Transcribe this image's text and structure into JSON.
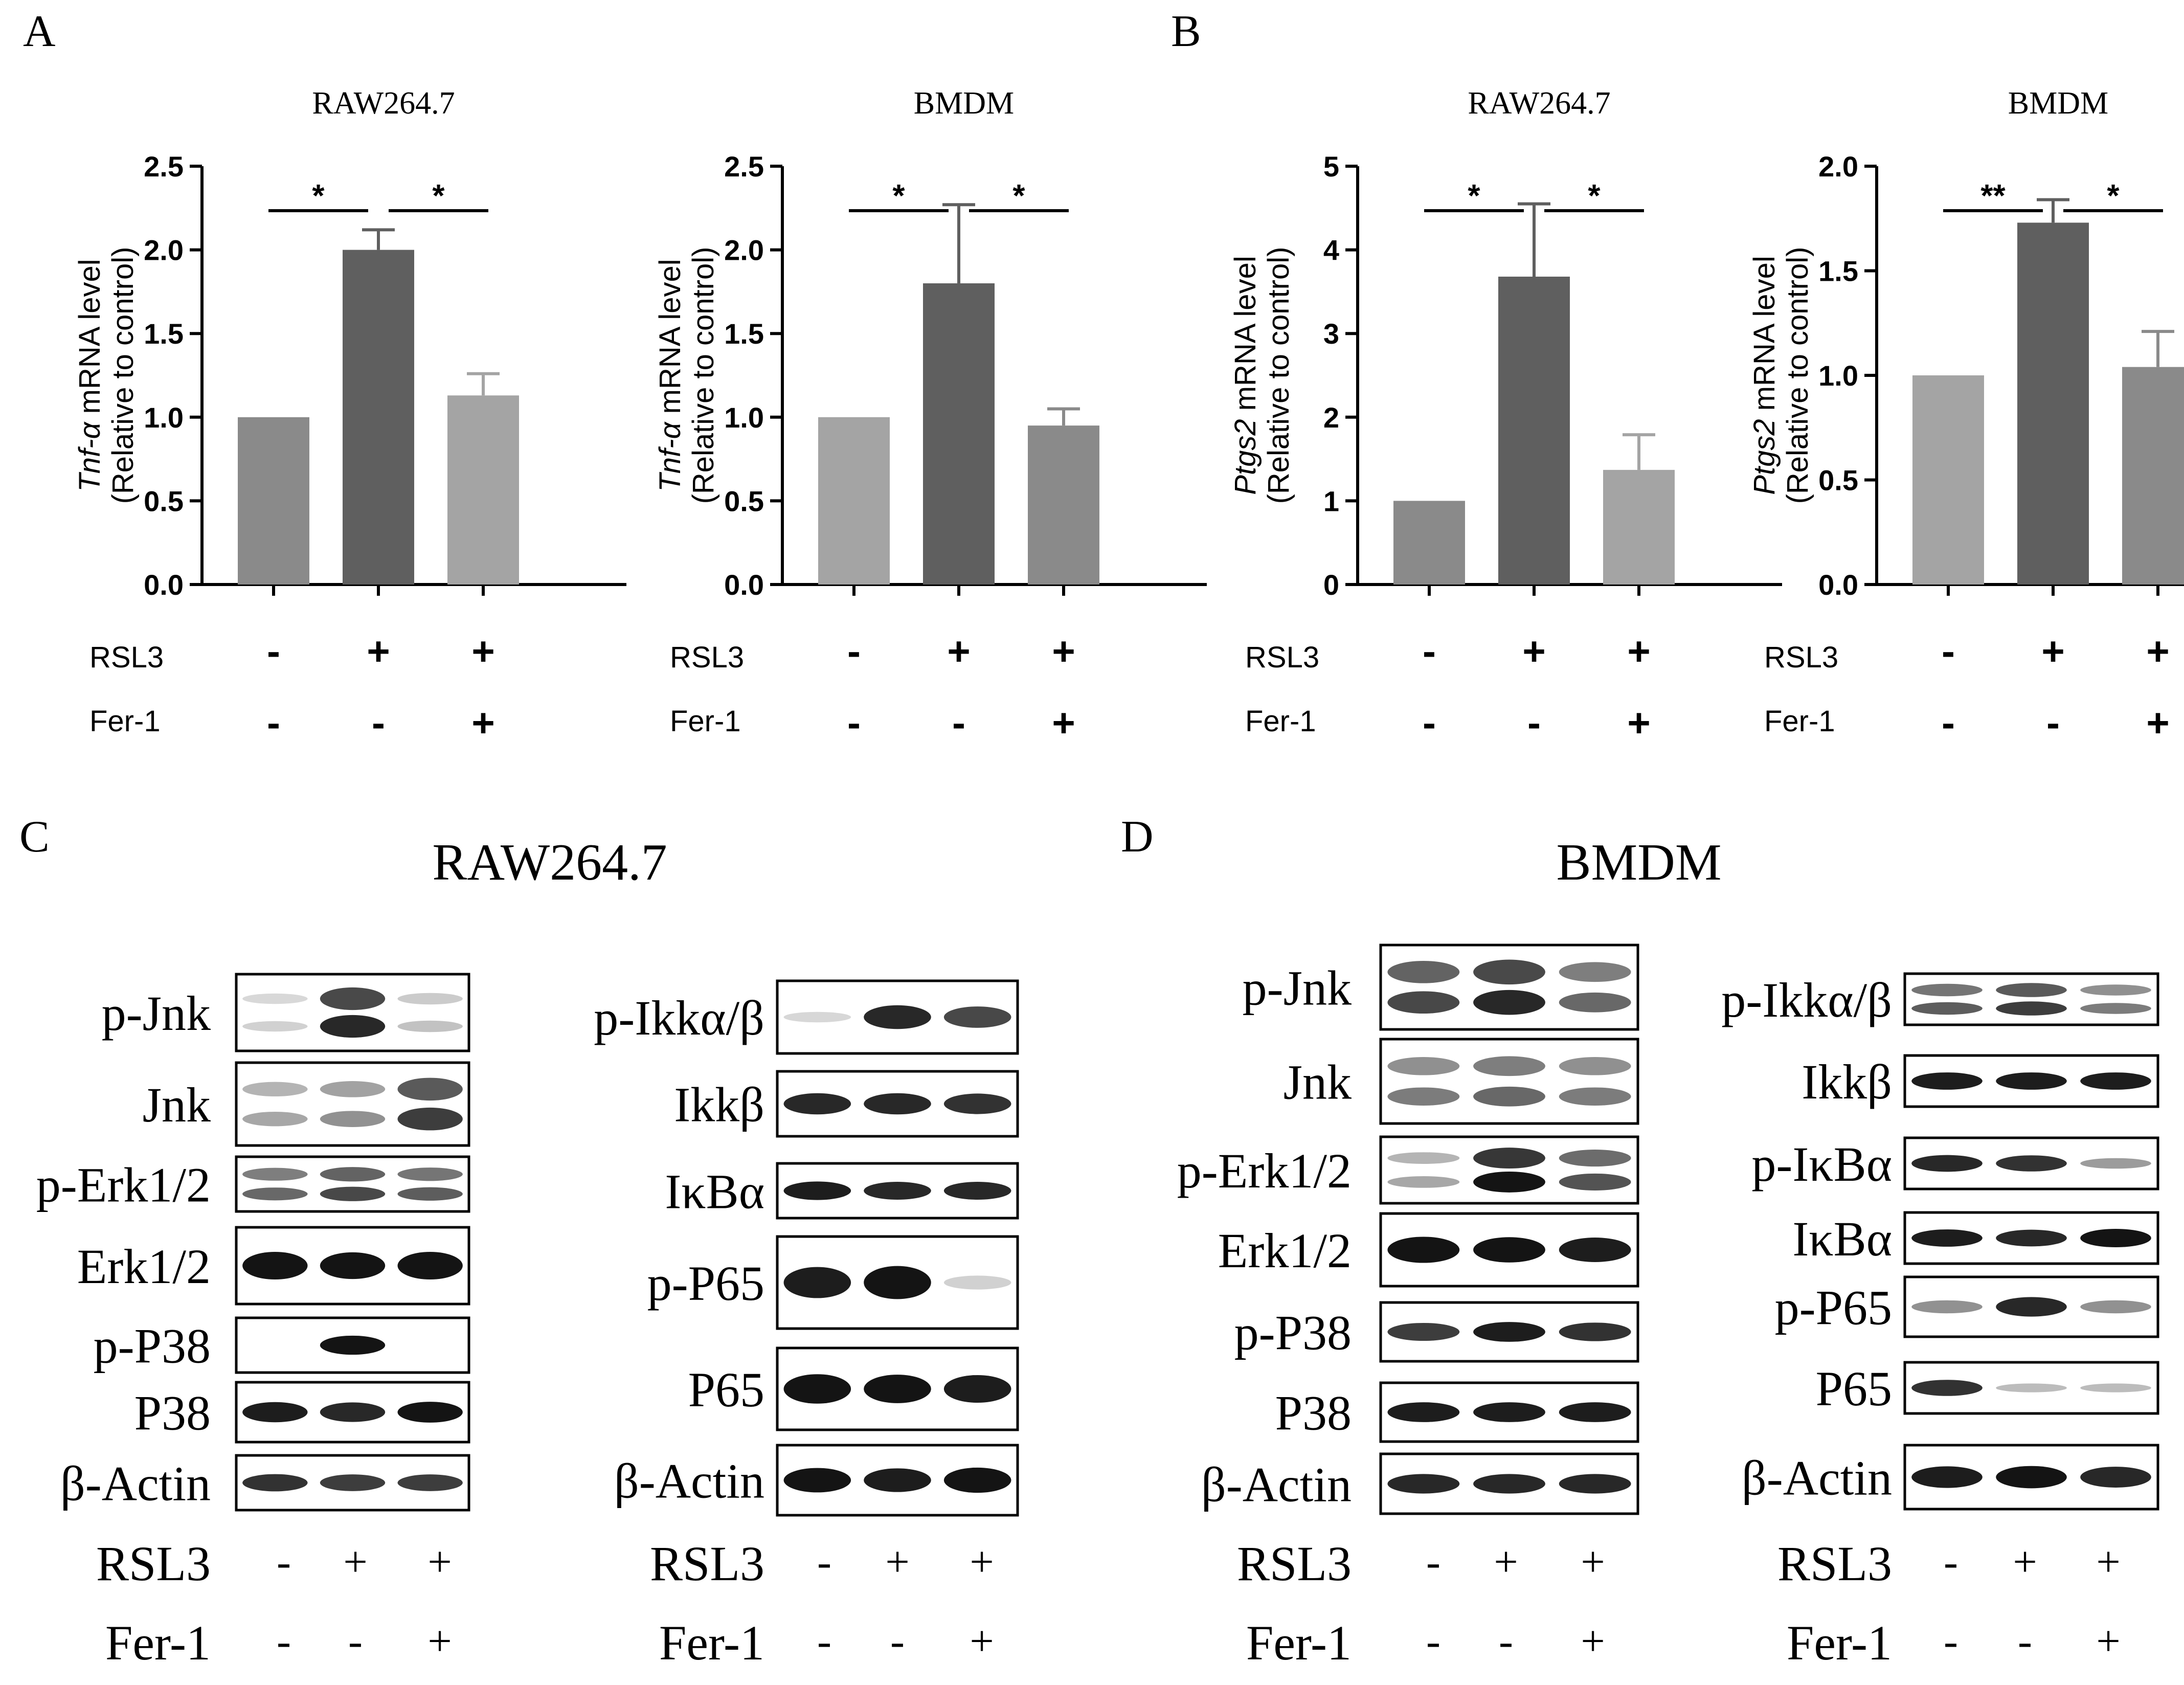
{
  "panel_letters": [
    "A",
    "B",
    "C",
    "D"
  ],
  "conditions": {
    "row_labels": [
      "RSL3",
      "Fer-1"
    ],
    "rsl3": [
      "-",
      "+",
      "+"
    ],
    "fer1": [
      "-",
      "-",
      "+"
    ]
  },
  "colors": {
    "bar_shades": [
      "#7f7f7f",
      "#5f5f5f",
      "#a4a4a4",
      "#9b9b9b",
      "#8a8a8a"
    ],
    "band": "#141414"
  },
  "chart_data": [
    {
      "panel": "A",
      "type": "bar",
      "title": "RAW264.7",
      "ylabel_gene": "Tnf-α",
      "ylabel_rest": " mRNA level",
      "ylabel_line2": "(Relative to control)",
      "ylim": [
        0,
        2.5
      ],
      "yticks": [
        "0.0",
        "0.5",
        "1.0",
        "1.5",
        "2.0",
        "2.5"
      ],
      "values": [
        1.0,
        2.0,
        1.13
      ],
      "errors": [
        0,
        0.12,
        0.13
      ],
      "bar_colors": [
        "#8a8a8a",
        "#5f5f5f",
        "#a4a4a4"
      ],
      "significance": [
        {
          "from": 0,
          "to": 1,
          "label": "*"
        },
        {
          "from": 1,
          "to": 2,
          "label": "*"
        }
      ]
    },
    {
      "panel": "A",
      "type": "bar",
      "title": "BMDM",
      "ylabel_gene": "Tnf-α",
      "ylabel_rest": " mRNA level",
      "ylabel_line2": "(Relative to control)",
      "ylim": [
        0,
        2.5
      ],
      "yticks": [
        "0.0",
        "0.5",
        "1.0",
        "1.5",
        "2.0",
        "2.5"
      ],
      "values": [
        1.0,
        1.8,
        0.95
      ],
      "errors": [
        0,
        0.47,
        0.1
      ],
      "bar_colors": [
        "#a4a4a4",
        "#5f5f5f",
        "#8a8a8a"
      ],
      "significance": [
        {
          "from": 0,
          "to": 1,
          "label": "*"
        },
        {
          "from": 1,
          "to": 2,
          "label": "*"
        }
      ]
    },
    {
      "panel": "B",
      "type": "bar",
      "title": "RAW264.7",
      "ylabel_gene": "Ptgs2",
      "ylabel_rest": " mRNA level",
      "ylabel_line2": "(Relative to control)",
      "ylim": [
        0,
        5
      ],
      "yticks": [
        "0",
        "1",
        "2",
        "3",
        "4",
        "5"
      ],
      "values": [
        1.0,
        3.68,
        1.37
      ],
      "errors": [
        0,
        0.87,
        0.42
      ],
      "bar_colors": [
        "#8a8a8a",
        "#5f5f5f",
        "#a4a4a4"
      ],
      "significance": [
        {
          "from": 0,
          "to": 1,
          "label": "*"
        },
        {
          "from": 1,
          "to": 2,
          "label": "*"
        }
      ]
    },
    {
      "panel": "B",
      "type": "bar",
      "title": "BMDM",
      "ylabel_gene": "Ptgs2",
      "ylabel_rest": " mRNA level",
      "ylabel_line2": "(Relative to control)",
      "ylim": [
        0,
        2.0
      ],
      "yticks": [
        "0.0",
        "0.5",
        "1.0",
        "1.5",
        "2.0"
      ],
      "values": [
        1.0,
        1.73,
        1.04
      ],
      "errors": [
        0,
        0.11,
        0.17
      ],
      "bar_colors": [
        "#a4a4a4",
        "#5f5f5f",
        "#8a8a8a"
      ],
      "significance": [
        {
          "from": 0,
          "to": 1,
          "label": "**"
        },
        {
          "from": 1,
          "to": 2,
          "label": "*"
        }
      ]
    }
  ],
  "blot_panels": [
    {
      "panel": "C",
      "title": "RAW264.7",
      "groups": [
        {
          "rows": [
            {
              "label": "p-Jnk",
              "intensity": [
                0.05,
                0.85,
                0.12
              ],
              "double": true
            },
            {
              "label": "Jnk",
              "intensity": [
                0.25,
                0.35,
                0.75
              ],
              "double": true
            },
            {
              "label": "p-Erk1/2",
              "intensity": [
                0.55,
                0.7,
                0.6
              ],
              "double": true
            },
            {
              "label": "Erk1/2",
              "intensity": [
                1.0,
                0.95,
                1.0
              ]
            },
            {
              "label": "p-P38",
              "intensity": [
                0,
                0.95,
                0
              ]
            },
            {
              "label": "P38",
              "intensity": [
                0.9,
                0.85,
                0.95
              ]
            },
            {
              "label": "β-Actin",
              "intensity": [
                0.8,
                0.75,
                0.75
              ]
            }
          ]
        },
        {
          "rows": [
            {
              "label": "p-Ikkα/β",
              "intensity": [
                0.02,
                0.85,
                0.7
              ]
            },
            {
              "label": "Ikkβ",
              "intensity": [
                0.85,
                0.85,
                0.8
              ]
            },
            {
              "label": "IκBα",
              "intensity": [
                0.9,
                0.85,
                0.85
              ]
            },
            {
              "label": "p-P65",
              "intensity": [
                0.9,
                1.0,
                0.05
              ]
            },
            {
              "label": "P65",
              "intensity": [
                1.0,
                0.95,
                0.9
              ]
            },
            {
              "label": "β-Actin",
              "intensity": [
                0.95,
                0.9,
                1.0
              ]
            }
          ]
        }
      ]
    },
    {
      "panel": "D",
      "title": "BMDM",
      "groups": [
        {
          "rows": [
            {
              "label": "p-Jnk",
              "intensity": [
                0.7,
                0.85,
                0.55
              ],
              "double": true
            },
            {
              "label": "Jnk",
              "intensity": [
                0.45,
                0.55,
                0.45
              ],
              "double": true
            },
            {
              "label": "p-Erk1/2",
              "intensity": [
                0.25,
                0.95,
                0.65
              ],
              "double": true
            },
            {
              "label": "Erk1/2",
              "intensity": [
                1.0,
                0.95,
                0.9
              ]
            },
            {
              "label": "p-P38",
              "intensity": [
                0.75,
                0.9,
                0.8
              ]
            },
            {
              "label": "P38",
              "intensity": [
                0.9,
                0.9,
                0.9
              ]
            },
            {
              "label": "β-Actin",
              "intensity": [
                0.85,
                0.85,
                0.85
              ]
            }
          ]
        },
        {
          "rows": [
            {
              "label": "p-Ikkα/β",
              "intensity": [
                0.6,
                0.75,
                0.45
              ],
              "double": true
            },
            {
              "label": "Ikkβ",
              "intensity": [
                0.9,
                0.9,
                0.9
              ]
            },
            {
              "label": "p-IκBα",
              "intensity": [
                0.85,
                0.8,
                0.3
              ]
            },
            {
              "label": "IκBα",
              "intensity": [
                0.9,
                0.85,
                1.0
              ]
            },
            {
              "label": "p-P65",
              "intensity": [
                0.35,
                0.85,
                0.35
              ]
            },
            {
              "label": "P65",
              "intensity": [
                0.8,
                0.15,
                0.15
              ]
            },
            {
              "label": "β-Actin",
              "intensity": [
                0.9,
                0.95,
                0.85
              ]
            }
          ]
        }
      ]
    }
  ]
}
